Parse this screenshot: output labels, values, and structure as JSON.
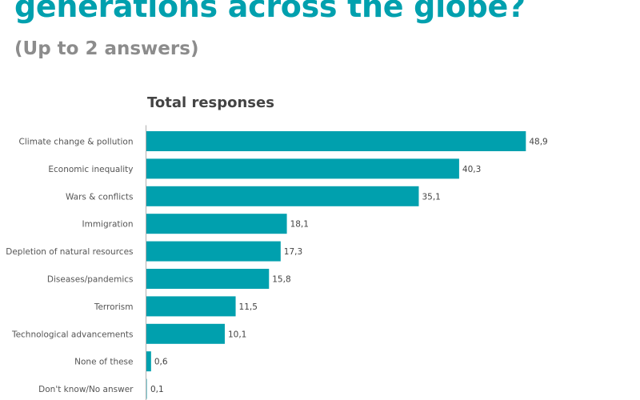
{
  "header": {
    "title": "generations across the globe?",
    "subtitle": "(Up to 2 answers)"
  },
  "chart_data": {
    "type": "bar",
    "orientation": "horizontal",
    "title": "Total responses",
    "categories": [
      "Climate change & pollution",
      "Economic inequality",
      "Wars & conflicts",
      "Immigration",
      "Depletion of natural resources",
      "Diseases/pandemics",
      "Terrorism",
      "Technological advancements",
      "None of these",
      "Don't know/No answer"
    ],
    "values": [
      48.9,
      40.3,
      35.1,
      18.1,
      17.3,
      15.8,
      11.5,
      10.1,
      0.6,
      0.1
    ],
    "value_labels": [
      "48,9",
      "40,3",
      "35,1",
      "18,1",
      "17,3",
      "15,8",
      "11,5",
      "10,1",
      "0,6",
      "0,1"
    ],
    "grid": false,
    "legend": "none",
    "colors": {
      "bar": "#00a0ae",
      "bar_light": "#7fcfd6",
      "axis": "#b0b0b0",
      "title": "#00a0ae"
    }
  }
}
